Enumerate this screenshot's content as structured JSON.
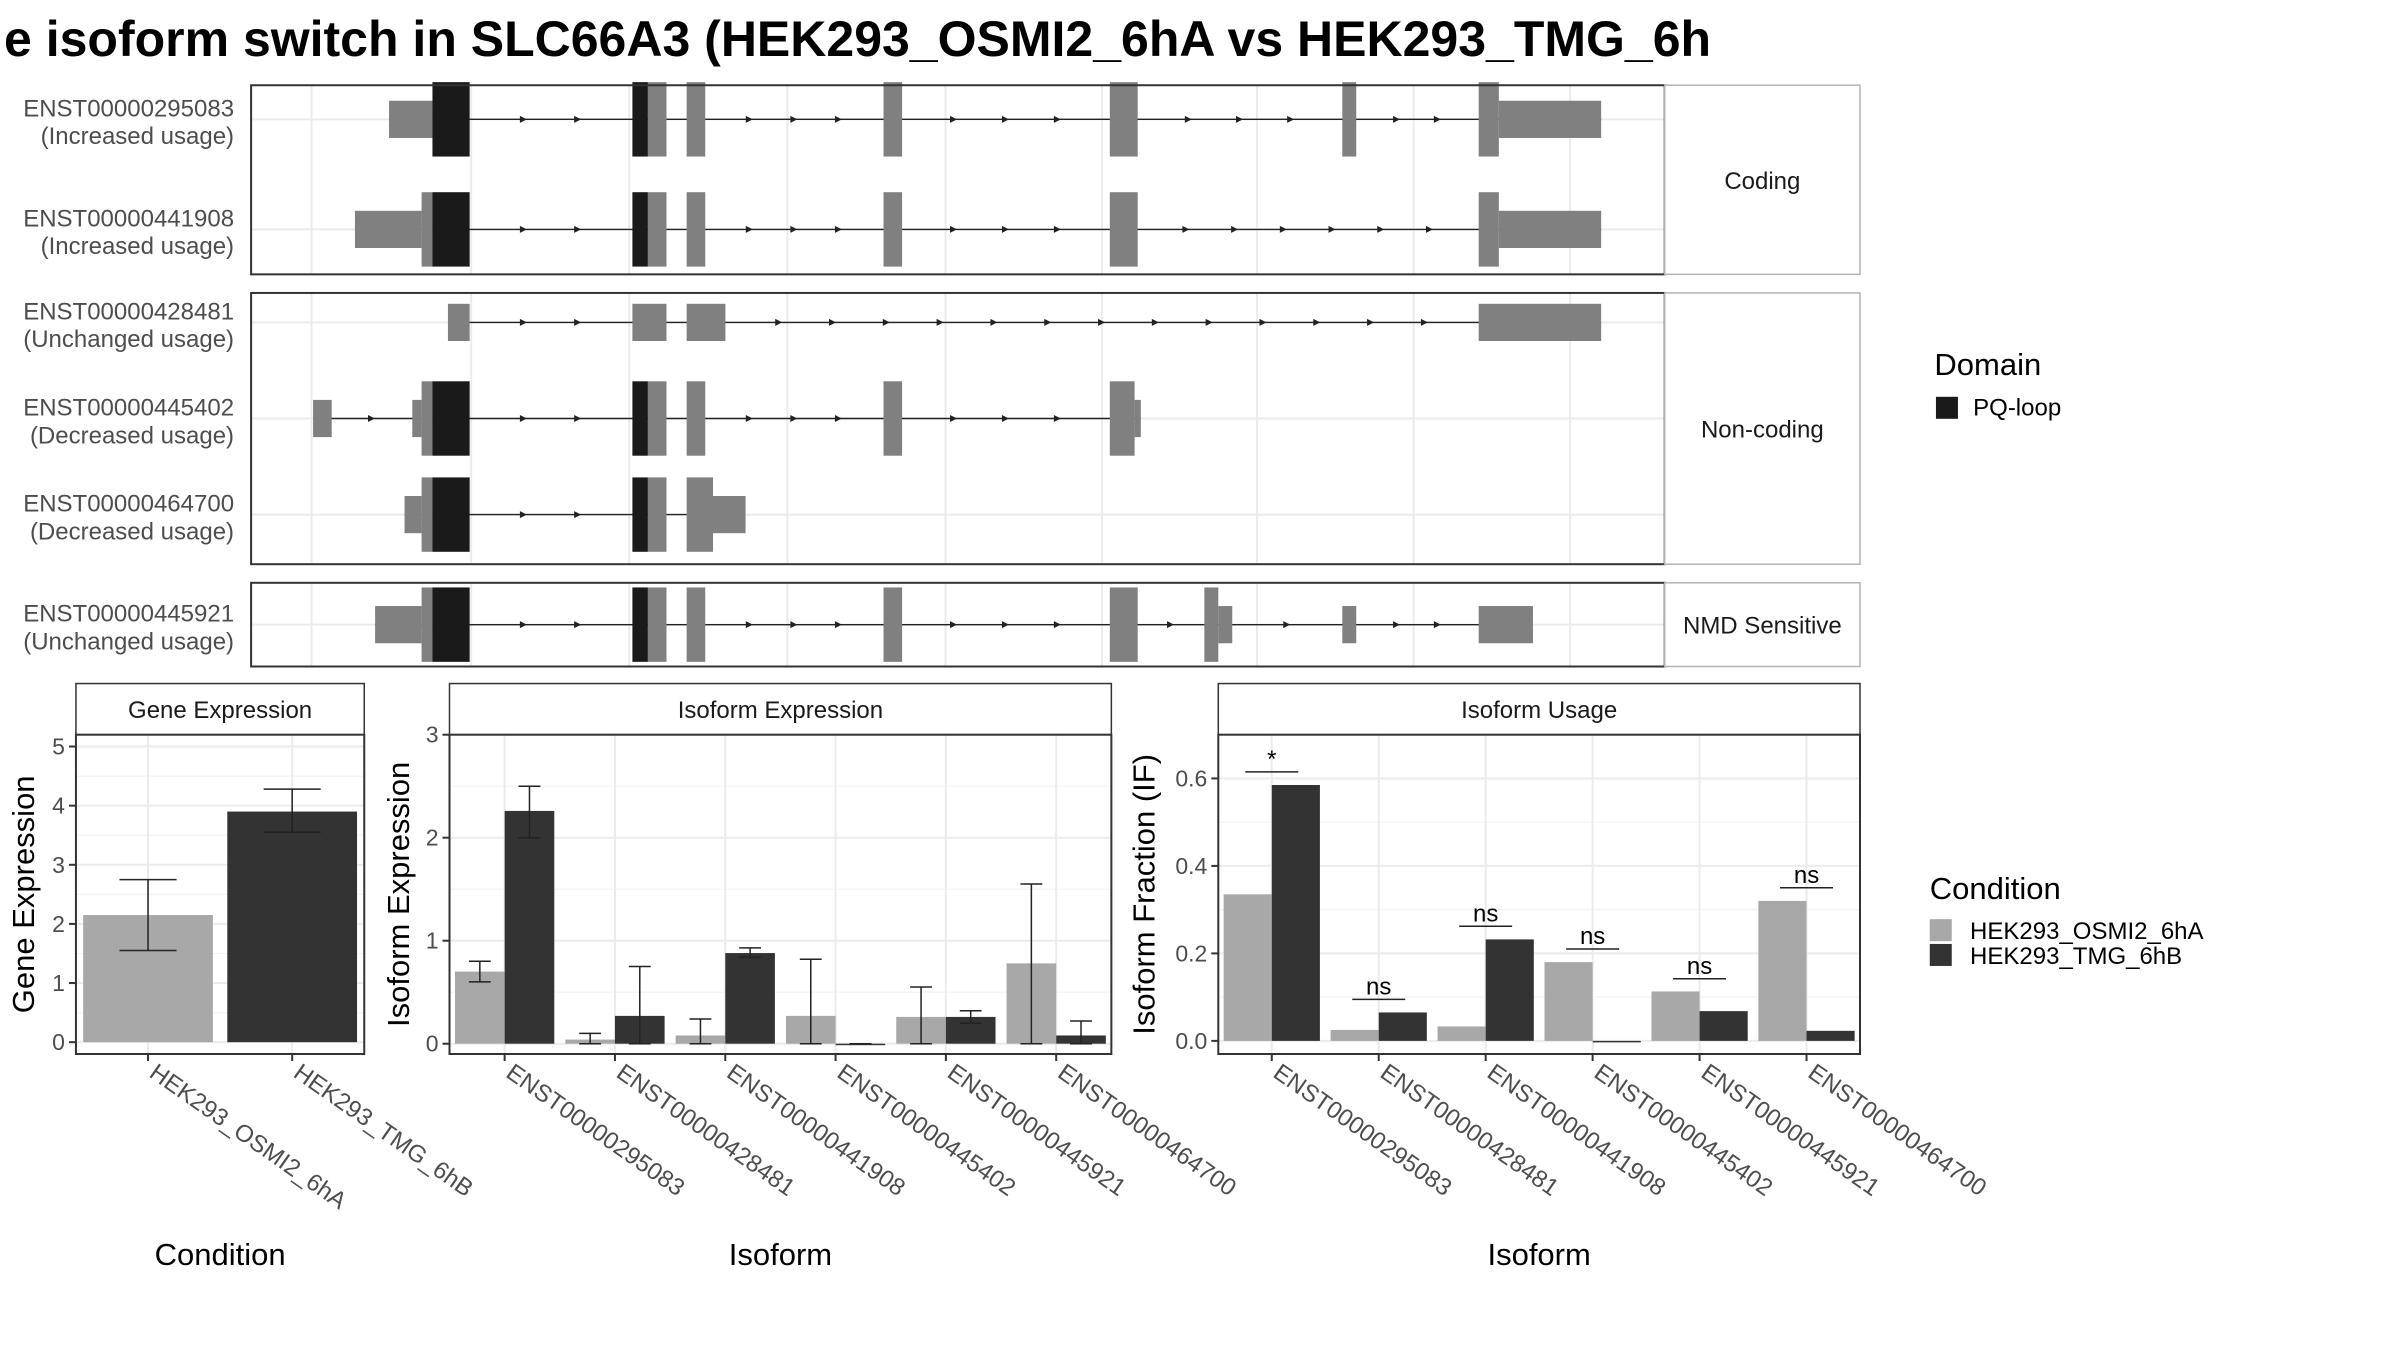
{
  "title": "e isoform switch in SLC66A3 (HEK293_OSMI2_6hA vs HEK293_TMG_6h",
  "colors": {
    "exon": "#808080",
    "domain": "#1a1a1a",
    "cond_a": "#a8a8a8",
    "cond_b": "#333333",
    "grid": "#ebebeb",
    "strip_bg": "#ffffff",
    "border": "#333333"
  },
  "legend_domain": {
    "title": "Domain",
    "items": [
      {
        "label": "PQ-loop",
        "color": "#1a1a1a"
      }
    ]
  },
  "legend_condition": {
    "title": "Condition",
    "items": [
      {
        "label": "HEK293_OSMI2_6hA",
        "color": "#a8a8a8"
      },
      {
        "label": "HEK293_TMG_6hB",
        "color": "#333333"
      }
    ]
  },
  "transcript_groups": [
    {
      "label": "Coding",
      "transcripts": [
        {
          "id": "ENST00000295083",
          "usage": "(Increased usage)",
          "start": 251,
          "end": 1033
        },
        {
          "id": "ENST00000441908",
          "usage": "(Increased usage)",
          "start": 229,
          "end": 1033
        }
      ]
    },
    {
      "label": "Non-coding",
      "transcripts": [
        {
          "id": "ENST00000428481",
          "usage": "(Unchanged usage)",
          "start": 289,
          "end": 1033
        },
        {
          "id": "ENST00000445402",
          "usage": "(Decreased usage)",
          "start": 202,
          "end": 736
        },
        {
          "id": "ENST00000464700",
          "usage": "(Decreased usage)",
          "start": 261,
          "end": 481
        }
      ]
    },
    {
      "label": "NMD Sensitive",
      "transcripts": [
        {
          "id": "ENST00000445921",
          "usage": "(Unchanged usage)",
          "start": 242,
          "end": 989
        }
      ]
    }
  ],
  "chart_data": [
    {
      "type": "bar",
      "title": "Gene Expression",
      "xlabel": "Condition",
      "ylabel": "Gene Expression",
      "ylim": [
        -0.2,
        5.2
      ],
      "yticks": [
        0,
        1,
        2,
        3,
        4,
        5
      ],
      "categories": [
        "HEK293_OSMI2_6hA",
        "HEK293_TMG_6hB"
      ],
      "values": [
        2.15,
        3.9
      ],
      "error_low": [
        1.55,
        3.55
      ],
      "error_high": [
        2.75,
        4.28
      ]
    },
    {
      "type": "bar",
      "title": "Isoform Expression",
      "xlabel": "Isoform",
      "ylabel": "Isoform Expression",
      "ylim": [
        -0.1,
        3.0
      ],
      "yticks": [
        0,
        1,
        2,
        3
      ],
      "categories": [
        "ENST00000295083",
        "ENST00000428481",
        "ENST00000441908",
        "ENST00000445402",
        "ENST00000445921",
        "ENST00000464700"
      ],
      "series": [
        {
          "name": "HEK293_OSMI2_6hA",
          "values": [
            0.7,
            0.04,
            0.08,
            0.27,
            0.26,
            0.78
          ],
          "error_low": [
            0.6,
            0.0,
            0.0,
            0.0,
            0.0,
            0.0
          ],
          "error_high": [
            0.8,
            0.1,
            0.24,
            0.82,
            0.55,
            1.55
          ]
        },
        {
          "name": "HEK293_TMG_6hB",
          "values": [
            2.26,
            0.27,
            0.88,
            0.0,
            0.26,
            0.08
          ],
          "error_low": [
            2.0,
            0.0,
            0.84,
            0.0,
            0.2,
            0.0
          ],
          "error_high": [
            2.5,
            0.75,
            0.93,
            0.0,
            0.32,
            0.22
          ]
        }
      ]
    },
    {
      "type": "bar",
      "title": "Isoform Usage",
      "xlabel": "Isoform",
      "ylabel": "Isoform Fraction (IF)",
      "ylim": [
        -0.03,
        0.7
      ],
      "yticks": [
        0.0,
        0.2,
        0.4,
        0.6
      ],
      "ytick_labels": [
        "0.0",
        "0.2",
        "0.4",
        "0.6"
      ],
      "categories": [
        "ENST00000295083",
        "ENST00000428481",
        "ENST00000441908",
        "ENST00000445402",
        "ENST00000445921",
        "ENST00000464700"
      ],
      "series": [
        {
          "name": "HEK293_OSMI2_6hA",
          "values": [
            0.335,
            0.025,
            0.033,
            0.18,
            0.113,
            0.32
          ]
        },
        {
          "name": "HEK293_TMG_6hB",
          "values": [
            0.585,
            0.065,
            0.232,
            0.0,
            0.068,
            0.023
          ]
        }
      ],
      "significance": [
        "*",
        "ns",
        "ns",
        "ns",
        "ns",
        "ns"
      ],
      "significance_y": [
        0.615,
        0.095,
        0.262,
        0.21,
        0.142,
        0.35
      ]
    }
  ]
}
